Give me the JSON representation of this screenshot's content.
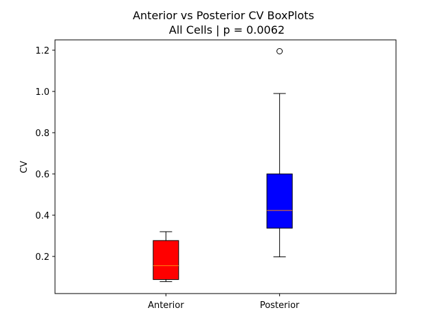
{
  "chart_data": {
    "type": "box",
    "title": "Anterior vs Posterior CV BoxPlots",
    "subtitle": "All Cells | p = 0.0062",
    "xlabel": "",
    "ylabel": "CV",
    "ylim": [
      0.02,
      1.25
    ],
    "yticks": [
      0.2,
      0.4,
      0.6,
      0.8,
      1.0,
      1.2
    ],
    "ytick_labels": [
      "0.2",
      "0.4",
      "0.6",
      "0.8",
      "1.0",
      "1.2"
    ],
    "categories": [
      "Anterior",
      "Posterior"
    ],
    "grid": false,
    "boxes": [
      {
        "name": "Anterior",
        "color": "#ff0000",
        "whisker_low": 0.078,
        "q1": 0.088,
        "median": 0.155,
        "q3": 0.277,
        "whisker_high": 0.32,
        "outliers": []
      },
      {
        "name": "Posterior",
        "color": "#0000ff",
        "whisker_low": 0.198,
        "q1": 0.337,
        "median": 0.423,
        "q3": 0.6,
        "whisker_high": 0.99,
        "outliers": [
          1.195
        ]
      }
    ],
    "median_color": "#ff7f0e"
  }
}
